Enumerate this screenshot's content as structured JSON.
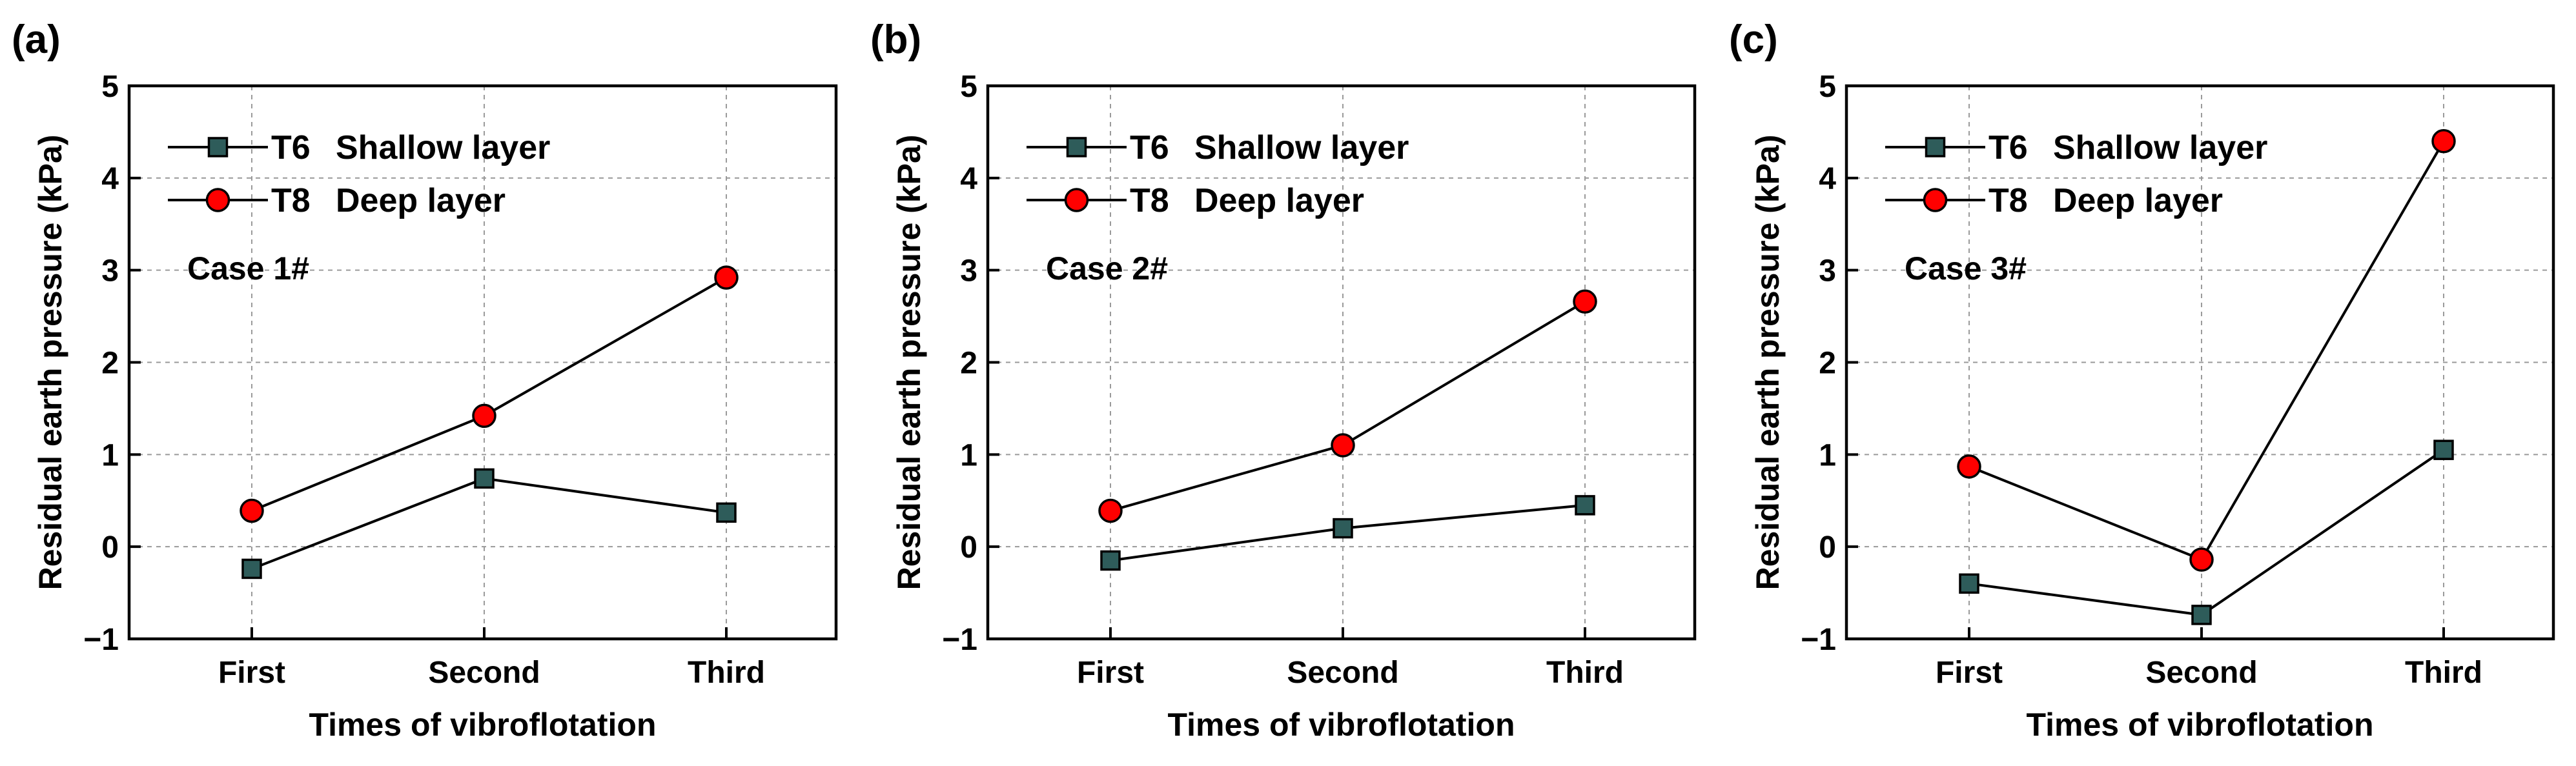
{
  "colors": {
    "t6_marker": "#2e5c5a",
    "t8_marker": "#ff0000",
    "line": "#000000",
    "grid": "#9a9a9a"
  },
  "chart_data": [
    {
      "type": "line",
      "panel_label": "(a)",
      "annotation": "Case 1#",
      "title": "",
      "xlabel": "Times of vibroflotation",
      "ylabel": "Residual earth pressure (kPa)",
      "categories": [
        "First",
        "Second",
        "Third"
      ],
      "ylim": [
        -1,
        5
      ],
      "yticks": [
        -1,
        0,
        1,
        2,
        3,
        4,
        5
      ],
      "ytick_labels": [
        "−1",
        "0",
        "1",
        "2",
        "3",
        "4",
        "5"
      ],
      "grid": true,
      "legend_position": "top-left",
      "series": [
        {
          "name": "T6",
          "description": "Shallow layer",
          "marker": "square",
          "values": [
            -0.24,
            0.74,
            0.37
          ]
        },
        {
          "name": "T8",
          "description": "Deep layer",
          "marker": "circle",
          "values": [
            0.39,
            1.42,
            2.92
          ]
        }
      ]
    },
    {
      "type": "line",
      "panel_label": "(b)",
      "annotation": "Case 2#",
      "title": "",
      "xlabel": "Times of vibroflotation",
      "ylabel": "Residual earth pressure (kPa)",
      "categories": [
        "First",
        "Second",
        "Third"
      ],
      "ylim": [
        -1,
        5
      ],
      "yticks": [
        -1,
        0,
        1,
        2,
        3,
        4,
        5
      ],
      "ytick_labels": [
        "−1",
        "0",
        "1",
        "2",
        "3",
        "4",
        "5"
      ],
      "grid": true,
      "legend_position": "top-left",
      "series": [
        {
          "name": "T6",
          "description": "Shallow layer",
          "marker": "square",
          "values": [
            -0.15,
            0.2,
            0.45
          ]
        },
        {
          "name": "T8",
          "description": "Deep layer",
          "marker": "circle",
          "values": [
            0.39,
            1.1,
            2.66
          ]
        }
      ]
    },
    {
      "type": "line",
      "panel_label": "(c)",
      "annotation": "Case 3#",
      "title": "",
      "xlabel": "Times of vibroflotation",
      "ylabel": "Residual earth pressure (kPa)",
      "categories": [
        "First",
        "Second",
        "Third"
      ],
      "ylim": [
        -1,
        5
      ],
      "yticks": [
        -1,
        0,
        1,
        2,
        3,
        4,
        5
      ],
      "ytick_labels": [
        "−1",
        "0",
        "1",
        "2",
        "3",
        "4",
        "5"
      ],
      "grid": true,
      "legend_position": "top-left",
      "series": [
        {
          "name": "T6",
          "description": "Shallow layer",
          "marker": "square",
          "values": [
            -0.4,
            -0.74,
            1.05
          ]
        },
        {
          "name": "T8",
          "description": "Deep layer",
          "marker": "circle",
          "values": [
            0.87,
            -0.14,
            4.4
          ]
        }
      ]
    }
  ]
}
